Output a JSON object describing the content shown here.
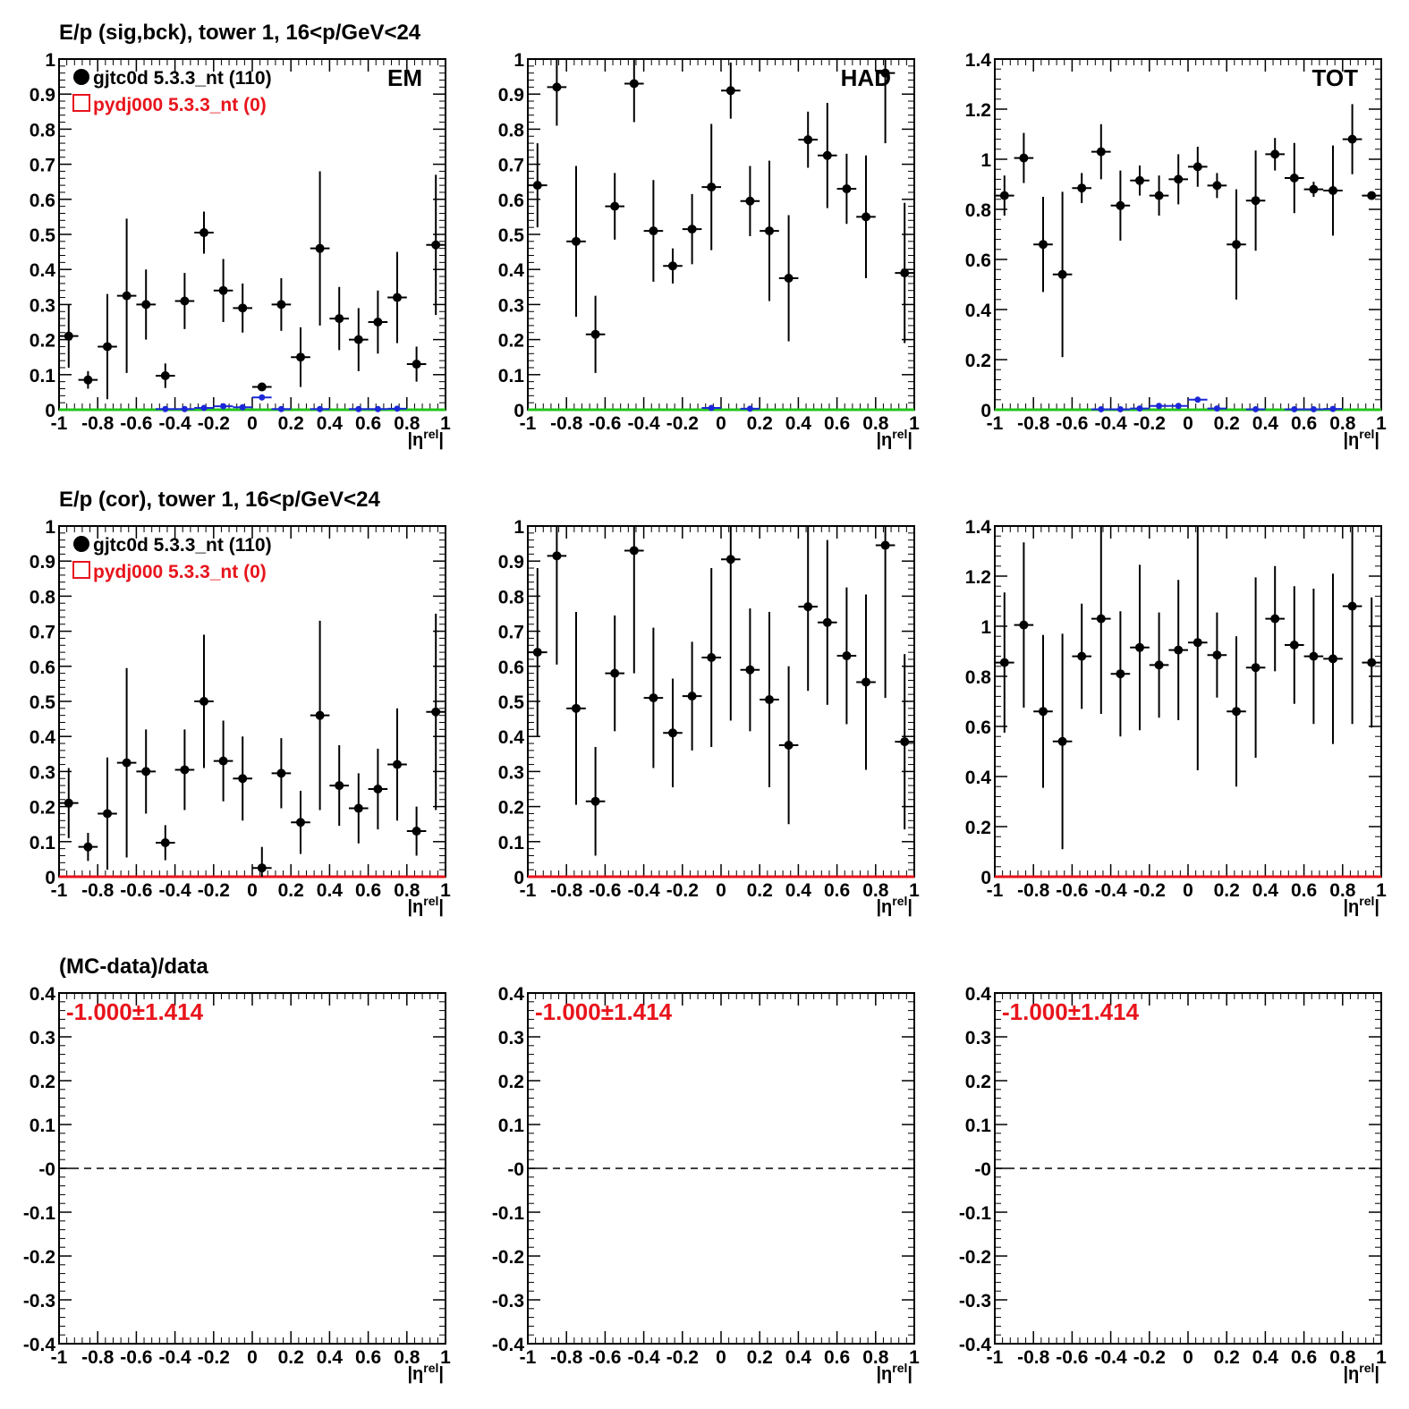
{
  "colors": {
    "data": "#000000",
    "mc": "#e8141c",
    "bck": "#1c28d8",
    "line": "#22c41a"
  },
  "row_titles": [
    "E/p (sig,bck), tower 1, 16<p/GeV<24",
    "E/p (cor), tower 1, 16<p/GeV<24",
    "(MC-data)/data"
  ],
  "legend": {
    "data": "gjtc0d 5.3.3_nt (110)",
    "mc": "pydj000 5.3.3_nt (0)"
  },
  "panel_labels": [
    "EM",
    "HAD",
    "TOT"
  ],
  "xlabel": "|η",
  "xlabel_sup": "rel",
  "x_ticks": [
    "-1",
    "-0.8",
    "-0.6",
    "-0.4",
    "-0.2",
    "0",
    "0.2",
    "0.4",
    "0.6",
    "0.8",
    "1"
  ],
  "ratio_text": "-1.000±1.414",
  "chart_data": [
    {
      "type": "scatter",
      "panel": "row1-EM",
      "xlim": [
        -1,
        1
      ],
      "ylim": [
        0,
        1
      ],
      "y_ticks": [
        "0",
        "0.1",
        "0.2",
        "0.3",
        "0.4",
        "0.5",
        "0.6",
        "0.7",
        "0.8",
        "0.9",
        "1"
      ],
      "label": "EM",
      "legend": true,
      "series": [
        {
          "name": "gjtc0d 5.3.3_nt (110)",
          "role": "data",
          "x": [
            -0.95,
            -0.85,
            -0.75,
            -0.65,
            -0.55,
            -0.45,
            -0.35,
            -0.25,
            -0.15,
            -0.05,
            0.05,
            0.15,
            0.25,
            0.35,
            0.45,
            0.55,
            0.65,
            0.75,
            0.85,
            0.95
          ],
          "y": [
            0.21,
            0.085,
            0.18,
            0.325,
            0.3,
            0.097,
            0.31,
            0.505,
            0.34,
            0.29,
            0.065,
            0.3,
            0.15,
            0.46,
            0.26,
            0.2,
            0.25,
            0.32,
            0.13,
            0.47
          ],
          "yerr": [
            0.09,
            0.025,
            0.15,
            0.22,
            0.1,
            0.035,
            0.08,
            0.06,
            0.09,
            0.07,
            0.01,
            0.075,
            0.085,
            0.22,
            0.09,
            0.09,
            0.09,
            0.13,
            0.05,
            0.2
          ]
        },
        {
          "role": "bck",
          "x": [
            -0.45,
            -0.35,
            -0.25,
            -0.15,
            -0.05,
            0.05,
            0.15,
            0.35,
            0.55,
            0.65,
            0.75
          ],
          "y": [
            0.002,
            0.002,
            0.005,
            0.01,
            0.007,
            0.035,
            0.002,
            0.002,
            0.002,
            0.002,
            0.003
          ]
        }
      ]
    },
    {
      "type": "scatter",
      "panel": "row1-HAD",
      "xlim": [
        -1,
        1
      ],
      "ylim": [
        0,
        1
      ],
      "y_ticks": [
        "0",
        "0.1",
        "0.2",
        "0.3",
        "0.4",
        "0.5",
        "0.6",
        "0.7",
        "0.8",
        "0.9",
        "1"
      ],
      "label": "HAD",
      "series": [
        {
          "role": "data",
          "x": [
            -0.95,
            -0.85,
            -0.75,
            -0.65,
            -0.55,
            -0.45,
            -0.35,
            -0.25,
            -0.15,
            -0.05,
            0.05,
            0.15,
            0.25,
            0.35,
            0.45,
            0.55,
            0.65,
            0.75,
            0.85,
            0.95
          ],
          "y": [
            0.64,
            0.92,
            0.48,
            0.215,
            0.58,
            0.93,
            0.51,
            0.41,
            0.515,
            0.635,
            0.91,
            0.595,
            0.51,
            0.375,
            0.77,
            0.725,
            0.63,
            0.55,
            0.96,
            0.39
          ],
          "yerr": [
            0.12,
            0.11,
            0.215,
            0.11,
            0.095,
            0.11,
            0.145,
            0.05,
            0.1,
            0.18,
            0.08,
            0.1,
            0.2,
            0.18,
            0.08,
            0.15,
            0.1,
            0.175,
            0.2,
            0.2
          ]
        },
        {
          "role": "bck",
          "x": [
            -0.05,
            0.15
          ],
          "y": [
            0.005,
            0.003
          ]
        }
      ]
    },
    {
      "type": "scatter",
      "panel": "row1-TOT",
      "xlim": [
        -1,
        1
      ],
      "ylim": [
        0,
        1.4
      ],
      "y_ticks": [
        "0",
        "0.2",
        "0.4",
        "0.6",
        "0.8",
        "1",
        "1.2",
        "1.4"
      ],
      "label": "TOT",
      "series": [
        {
          "role": "data",
          "x": [
            -0.95,
            -0.85,
            -0.75,
            -0.65,
            -0.55,
            -0.45,
            -0.35,
            -0.25,
            -0.15,
            -0.05,
            0.05,
            0.15,
            0.25,
            0.35,
            0.45,
            0.55,
            0.65,
            0.75,
            0.85,
            0.95
          ],
          "y": [
            0.855,
            1.005,
            0.66,
            0.54,
            0.885,
            1.03,
            0.815,
            0.915,
            0.855,
            0.92,
            0.97,
            0.895,
            0.66,
            0.835,
            1.02,
            0.925,
            0.88,
            0.875,
            1.08,
            0.855
          ],
          "yerr": [
            0.08,
            0.1,
            0.19,
            0.33,
            0.06,
            0.11,
            0.14,
            0.06,
            0.08,
            0.1,
            0.08,
            0.05,
            0.22,
            0.2,
            0.065,
            0.14,
            0.03,
            0.18,
            0.14,
            0.0
          ]
        },
        {
          "role": "bck",
          "x": [
            -0.45,
            -0.35,
            -0.25,
            -0.15,
            -0.05,
            0.05,
            0.15,
            0.35,
            0.55,
            0.65,
            0.75
          ],
          "y": [
            0.002,
            0.002,
            0.005,
            0.015,
            0.015,
            0.04,
            0.005,
            0.002,
            0.002,
            0.002,
            0.003
          ]
        }
      ]
    },
    {
      "type": "scatter",
      "panel": "row2-EM",
      "xlim": [
        -1,
        1
      ],
      "ylim": [
        0,
        1
      ],
      "y_ticks": [
        "0",
        "0.1",
        "0.2",
        "0.3",
        "0.4",
        "0.5",
        "0.6",
        "0.7",
        "0.8",
        "0.9",
        "1"
      ],
      "legend": true,
      "series": [
        {
          "role": "data",
          "x": [
            -0.95,
            -0.85,
            -0.75,
            -0.65,
            -0.55,
            -0.45,
            -0.35,
            -0.25,
            -0.15,
            -0.05,
            0.05,
            0.15,
            0.25,
            0.35,
            0.45,
            0.55,
            0.65,
            0.75,
            0.85,
            0.95
          ],
          "y": [
            0.21,
            0.085,
            0.18,
            0.325,
            0.3,
            0.097,
            0.305,
            0.5,
            0.33,
            0.28,
            0.025,
            0.295,
            0.155,
            0.46,
            0.26,
            0.195,
            0.25,
            0.32,
            0.13,
            0.47
          ],
          "yerr": [
            0.1,
            0.04,
            0.16,
            0.27,
            0.12,
            0.05,
            0.115,
            0.19,
            0.115,
            0.12,
            0.06,
            0.1,
            0.09,
            0.27,
            0.115,
            0.1,
            0.115,
            0.16,
            0.07,
            0.28
          ]
        },
        {
          "role": "mc-line",
          "x": [],
          "y": []
        }
      ]
    },
    {
      "type": "scatter",
      "panel": "row2-HAD",
      "xlim": [
        -1,
        1
      ],
      "ylim": [
        0,
        1
      ],
      "y_ticks": [
        "0",
        "0.1",
        "0.2",
        "0.3",
        "0.4",
        "0.5",
        "0.6",
        "0.7",
        "0.8",
        "0.9",
        "1"
      ],
      "series": [
        {
          "role": "data",
          "x": [
            -0.95,
            -0.85,
            -0.75,
            -0.65,
            -0.55,
            -0.45,
            -0.35,
            -0.25,
            -0.15,
            -0.05,
            0.05,
            0.15,
            0.25,
            0.35,
            0.45,
            0.55,
            0.65,
            0.75,
            0.85,
            0.95
          ],
          "y": [
            0.64,
            0.915,
            0.48,
            0.215,
            0.58,
            0.93,
            0.51,
            0.41,
            0.515,
            0.625,
            0.905,
            0.59,
            0.505,
            0.375,
            0.77,
            0.725,
            0.63,
            0.555,
            0.945,
            0.385
          ],
          "yerr": [
            0.24,
            0.31,
            0.275,
            0.155,
            0.165,
            0.35,
            0.2,
            0.155,
            0.155,
            0.255,
            0.46,
            0.175,
            0.25,
            0.225,
            0.24,
            0.235,
            0.195,
            0.25,
            0.435,
            0.25
          ]
        },
        {
          "role": "mc-line",
          "x": [],
          "y": []
        }
      ]
    },
    {
      "type": "scatter",
      "panel": "row2-TOT",
      "xlim": [
        -1,
        1
      ],
      "ylim": [
        0,
        1.4
      ],
      "y_ticks": [
        "0",
        "0.2",
        "0.4",
        "0.6",
        "0.8",
        "1",
        "1.2",
        "1.4"
      ],
      "series": [
        {
          "role": "data",
          "x": [
            -0.95,
            -0.85,
            -0.75,
            -0.65,
            -0.55,
            -0.45,
            -0.35,
            -0.25,
            -0.15,
            -0.05,
            0.05,
            0.15,
            0.25,
            0.35,
            0.45,
            0.55,
            0.65,
            0.75,
            0.85,
            0.95
          ],
          "y": [
            0.855,
            1.005,
            0.66,
            0.54,
            0.88,
            1.03,
            0.81,
            0.915,
            0.845,
            0.905,
            0.935,
            0.885,
            0.66,
            0.835,
            1.03,
            0.925,
            0.88,
            0.87,
            1.08,
            0.855
          ],
          "yerr": [
            0.28,
            0.33,
            0.305,
            0.43,
            0.21,
            0.38,
            0.25,
            0.33,
            0.21,
            0.28,
            0.51,
            0.17,
            0.3,
            0.36,
            0.21,
            0.235,
            0.27,
            0.34,
            0.47,
            0.26
          ]
        },
        {
          "role": "mc-line",
          "x": [],
          "y": []
        }
      ]
    },
    {
      "type": "scatter",
      "panel": "row3-EM",
      "xlim": [
        -1,
        1
      ],
      "ylim": [
        -0.4,
        0.4
      ],
      "y_ticks": [
        "-0.4",
        "-0.3",
        "-0.2",
        "-0.1",
        "-0",
        "0.1",
        "0.2",
        "0.3",
        "0.4"
      ],
      "reference_line": 0,
      "annotation": "-1.000±1.414",
      "series": []
    },
    {
      "type": "scatter",
      "panel": "row3-HAD",
      "xlim": [
        -1,
        1
      ],
      "ylim": [
        -0.4,
        0.4
      ],
      "y_ticks": [
        "-0.4",
        "-0.3",
        "-0.2",
        "-0.1",
        "-0",
        "0.1",
        "0.2",
        "0.3",
        "0.4"
      ],
      "reference_line": 0,
      "annotation": "-1.000±1.414",
      "series": []
    },
    {
      "type": "scatter",
      "panel": "row3-TOT",
      "xlim": [
        -1,
        1
      ],
      "ylim": [
        -0.4,
        0.4
      ],
      "y_ticks": [
        "-0.4",
        "-0.3",
        "-0.2",
        "-0.1",
        "-0",
        "0.1",
        "0.2",
        "0.3",
        "0.4"
      ],
      "reference_line": 0,
      "annotation": "-1.000±1.414",
      "series": []
    }
  ]
}
